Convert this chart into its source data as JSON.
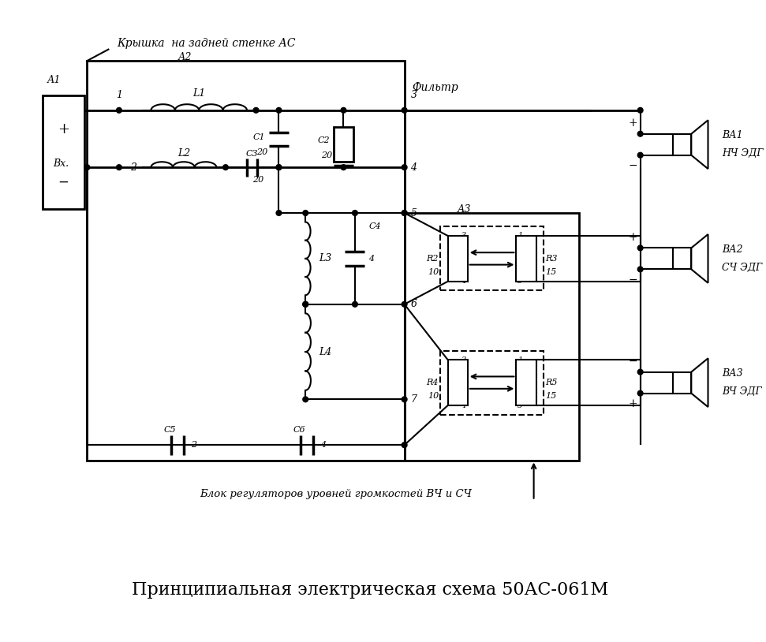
{
  "title": "Принципиальная электрическая схема 50АС-061М",
  "bg_color": "#ffffff",
  "lw": 1.5,
  "lw2": 2.0,
  "fig_width": 9.71,
  "fig_height": 8.14,
  "label_top": "Крышка  на задней стенке АС",
  "label_filter": "Фильтр",
  "label_block": "Блок регуляторов уровней громкостей ВЧ и СЧ"
}
